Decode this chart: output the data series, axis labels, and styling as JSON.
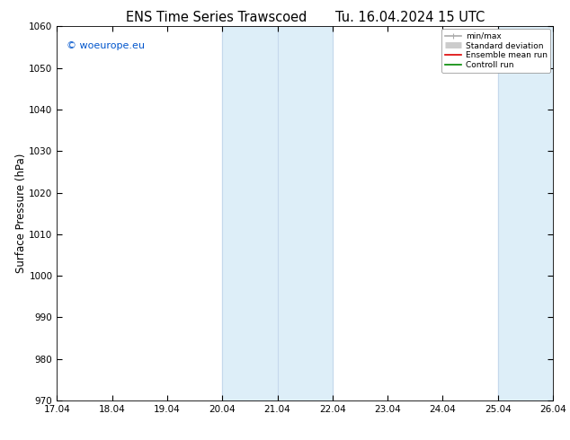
{
  "title_left": "ENS Time Series Trawscoed",
  "title_right": "Tu. 16.04.2024 15 UTC",
  "ylabel": "Surface Pressure (hPa)",
  "ylim": [
    970,
    1060
  ],
  "yticks": [
    970,
    980,
    990,
    1000,
    1010,
    1020,
    1030,
    1040,
    1050,
    1060
  ],
  "xlim": [
    0,
    9
  ],
  "xtick_labels": [
    "17.04",
    "18.04",
    "19.04",
    "20.04",
    "21.04",
    "22.04",
    "23.04",
    "24.04",
    "25.04",
    "26.04"
  ],
  "xtick_positions": [
    0,
    1,
    2,
    3,
    4,
    5,
    6,
    7,
    8,
    9
  ],
  "shaded_regions": [
    {
      "xmin": 3.0,
      "xmax": 4.0
    },
    {
      "xmin": 4.0,
      "xmax": 5.0
    },
    {
      "xmin": 8.0,
      "xmax": 9.0
    }
  ],
  "shade_color_light": "#ddeeff",
  "shade_color_medium": "#cce0f5",
  "watermark": "© woeurope.eu",
  "watermark_color": "#0055cc",
  "legend_entries": [
    {
      "label": "min/max",
      "color": "#aaaaaa",
      "lw": 1.2
    },
    {
      "label": "Standard deviation",
      "color": "#cccccc",
      "lw": 5
    },
    {
      "label": "Ensemble mean run",
      "color": "#dd0000",
      "lw": 1.2
    },
    {
      "label": "Controll run",
      "color": "#008800",
      "lw": 1.2
    }
  ],
  "bg_color": "#ffffff",
  "title_fontsize": 10.5,
  "tick_fontsize": 7.5,
  "ylabel_fontsize": 8.5,
  "watermark_fontsize": 8
}
